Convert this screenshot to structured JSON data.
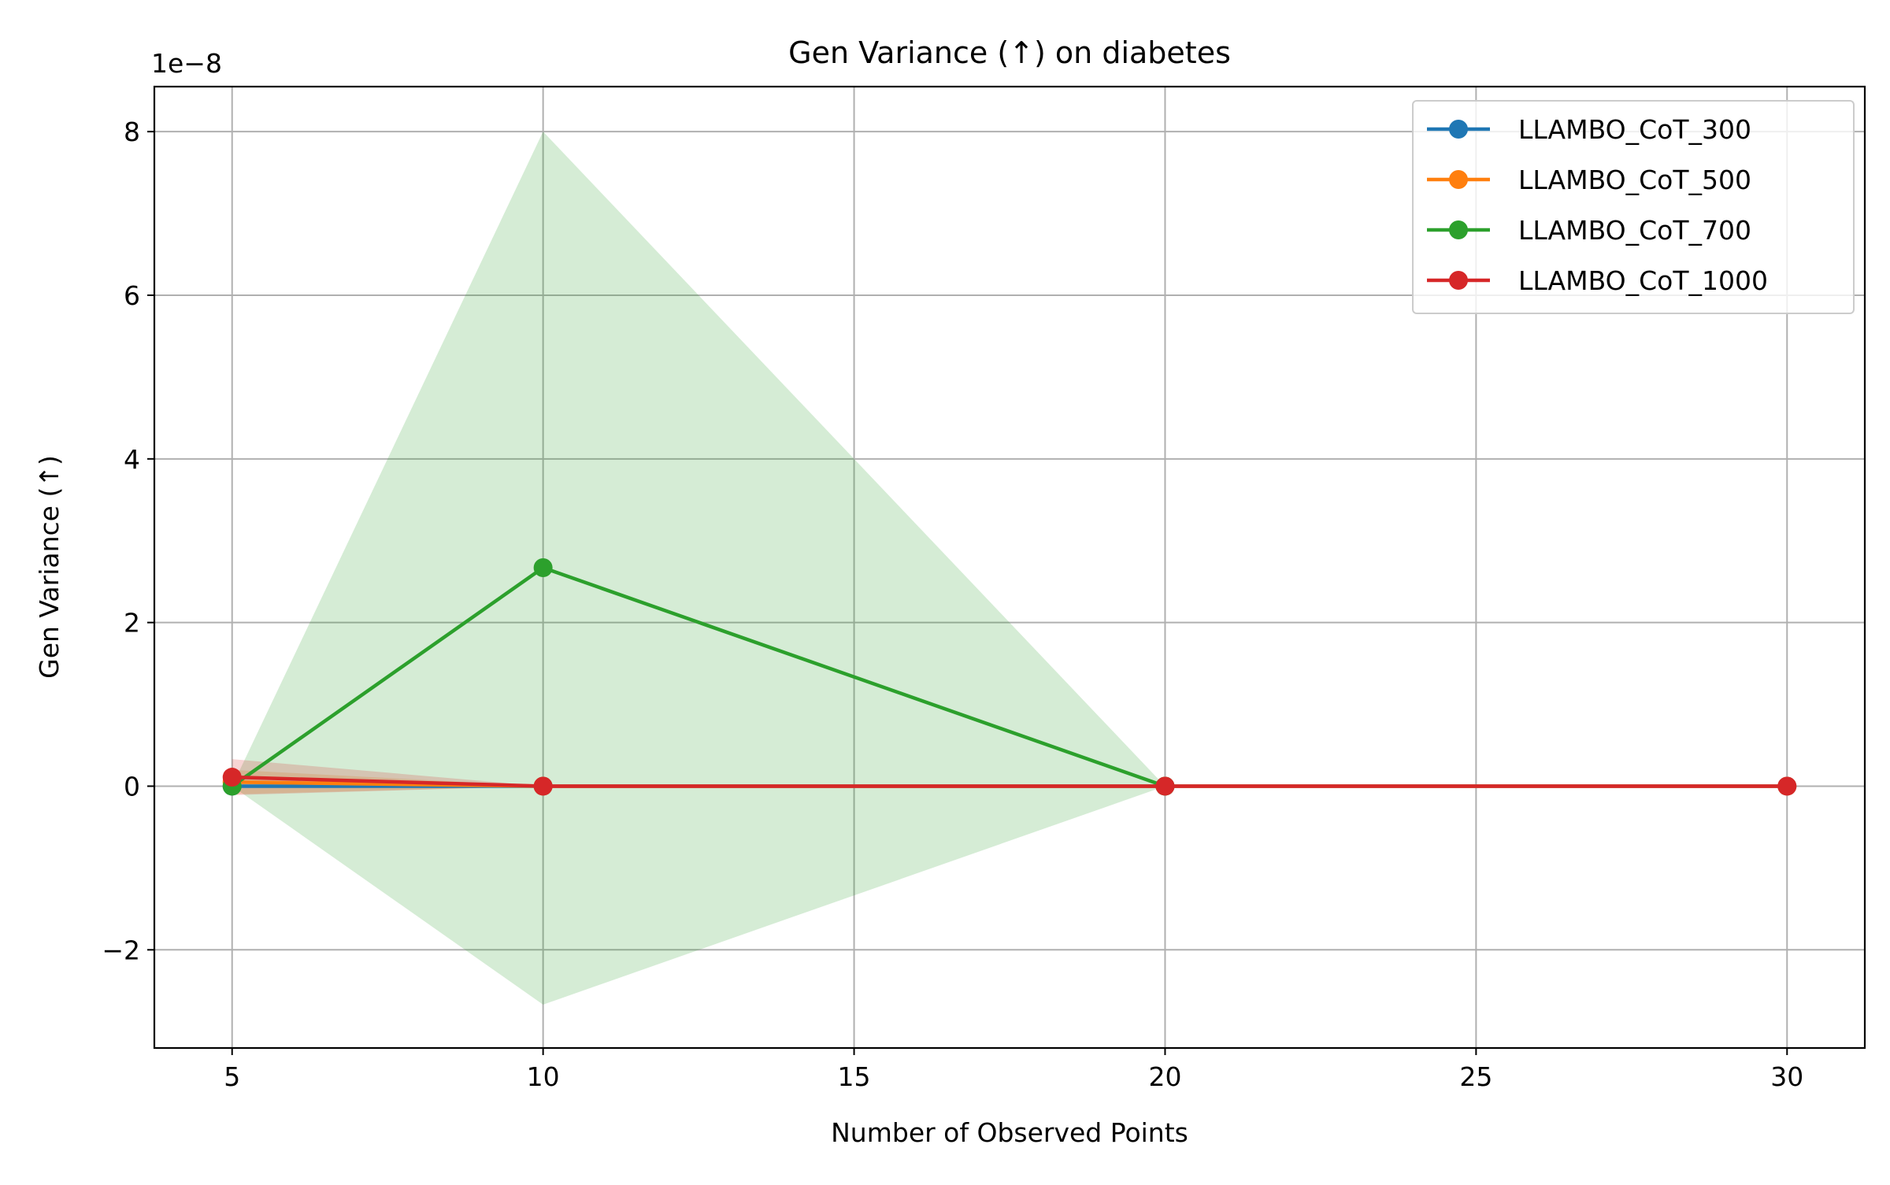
{
  "chart_data": {
    "type": "line",
    "title": "Gen Variance (↑) on diabetes",
    "xlabel": "Number of Observed Points",
    "ylabel": "Gen Variance (↑)",
    "y_offset_label": "1e−8",
    "xlim": [
      3.75,
      31.25
    ],
    "ylim": [
      -3.2,
      8.55
    ],
    "x_ticks": [
      5,
      10,
      15,
      20,
      25,
      30
    ],
    "x_tick_labels": [
      "5",
      "10",
      "15",
      "20",
      "25",
      "30"
    ],
    "y_ticks": [
      -2,
      0,
      2,
      4,
      6,
      8
    ],
    "y_tick_labels": [
      "−2",
      "0",
      "2",
      "4",
      "6",
      "8"
    ],
    "grid": true,
    "legend_position": "top-right",
    "series": [
      {
        "name": "LLAMBO_CoT_300",
        "color": "#1f77b4",
        "x": [
          5,
          10,
          20,
          30
        ],
        "y": [
          0.0,
          0.0,
          0.0,
          0.0
        ],
        "band_lower": [
          0.0,
          0.0,
          0.0,
          0.0
        ],
        "band_upper": [
          0.0,
          0.0,
          0.0,
          0.0
        ]
      },
      {
        "name": "LLAMBO_CoT_500",
        "color": "#ff7f0e",
        "x": [
          5,
          10,
          20,
          30
        ],
        "y": [
          0.05,
          0.0,
          0.0,
          0.0
        ],
        "band_lower": [
          -0.1,
          0.0,
          0.0,
          0.0
        ],
        "band_upper": [
          0.2,
          0.0,
          0.0,
          0.0
        ]
      },
      {
        "name": "LLAMBO_CoT_700",
        "color": "#2ca02c",
        "x": [
          5,
          10,
          20
        ],
        "y": [
          0.0,
          2.67,
          0.0
        ],
        "band_lower": [
          0.0,
          -2.67,
          0.0
        ],
        "band_upper": [
          0.0,
          8.0,
          0.0
        ]
      },
      {
        "name": "LLAMBO_CoT_1000",
        "color": "#d62728",
        "x": [
          5,
          10,
          20,
          30
        ],
        "y": [
          0.11,
          0.0,
          0.0,
          0.0
        ],
        "band_lower": [
          -0.11,
          0.0,
          0.0,
          0.0
        ],
        "band_upper": [
          0.33,
          0.0,
          0.0,
          0.0
        ]
      }
    ]
  }
}
